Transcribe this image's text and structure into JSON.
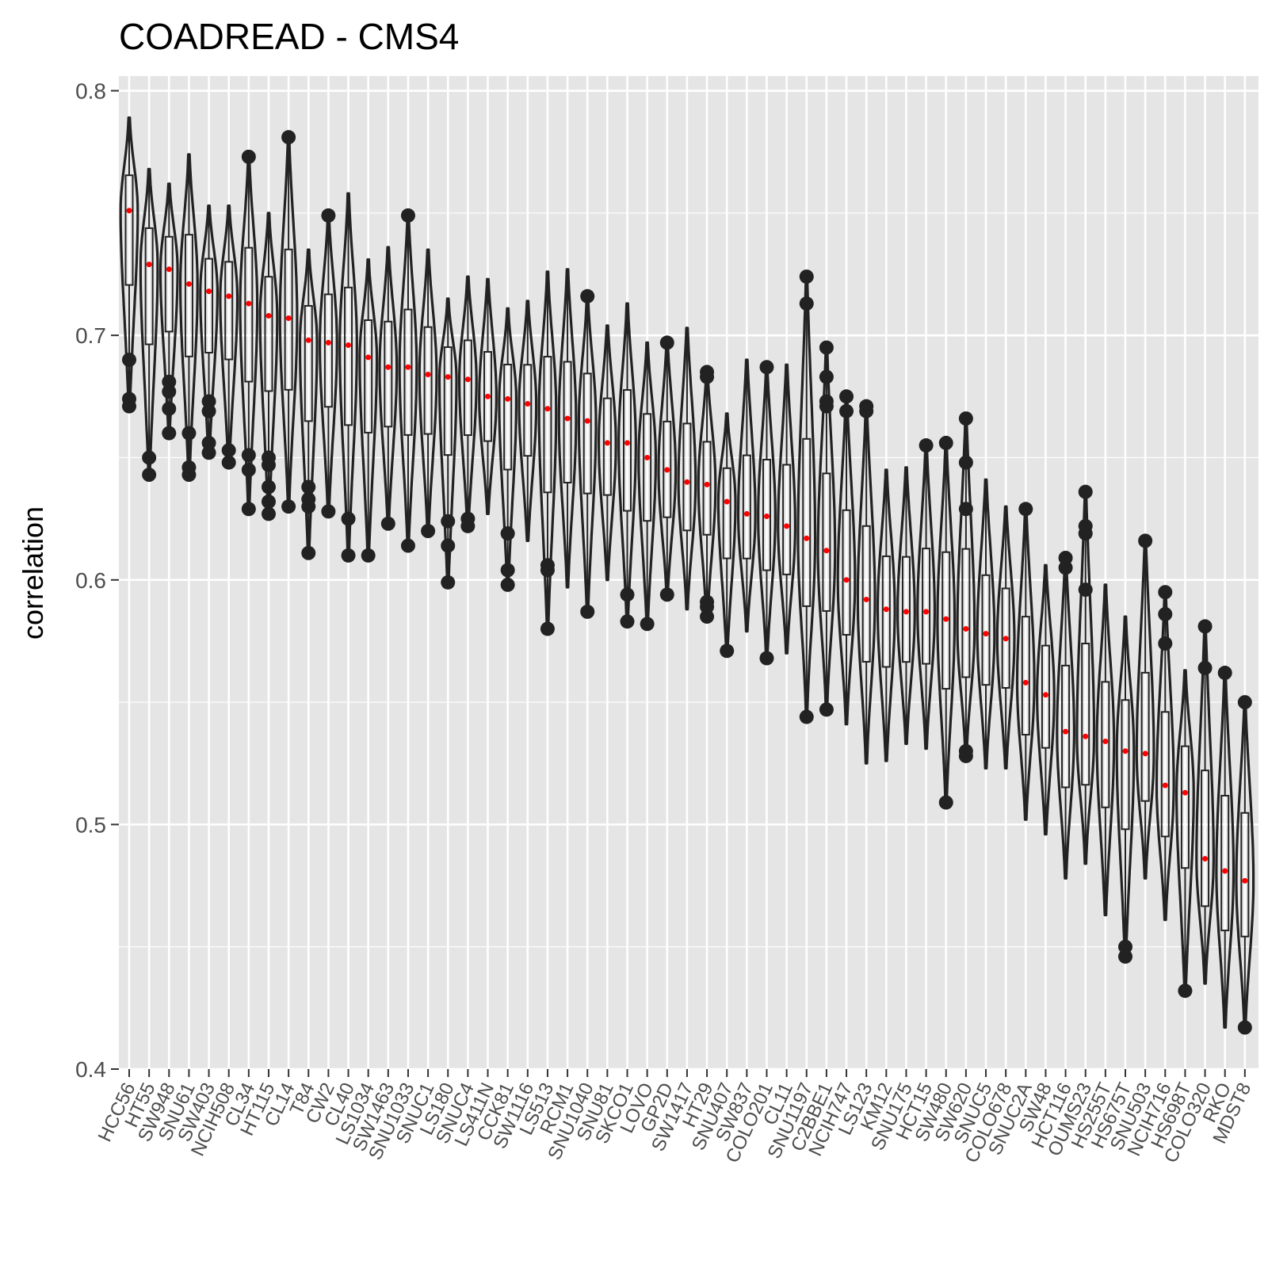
{
  "chart_data": {
    "type": "violin",
    "title": "COADREAD - CMS4",
    "ylabel": "correlation",
    "xlabel": "",
    "ylim": [
      0.4,
      0.806
    ],
    "yticks": [
      0.4,
      0.5,
      0.6,
      0.7,
      0.8
    ],
    "ytick_labels": [
      "0.4",
      "0.5",
      "0.6",
      "0.7",
      "0.8"
    ],
    "grid": true,
    "colors": {
      "panel": "#e5e5e5",
      "grid": "#ffffff",
      "violin": "#222222",
      "mean": "#ff0000"
    },
    "categories": [
      "HCC56",
      "HT55",
      "SW948",
      "SNU61",
      "SW403",
      "NCIH508",
      "CL34",
      "HT115",
      "CL14",
      "T84",
      "CW2",
      "CL40",
      "LS1034",
      "SW1463",
      "SNU1033",
      "SNUC1",
      "LS180",
      "SNUC4",
      "LS411N",
      "CCK81",
      "SW1116",
      "LS513",
      "RCM1",
      "SNU1040",
      "SNU81",
      "SKCO1",
      "LOVO",
      "GP2D",
      "SW1417",
      "HT29",
      "SNU407",
      "SW837",
      "COLO201",
      "CL11",
      "SNU1197",
      "C2BBE1",
      "NCIH747",
      "LS123",
      "KM12",
      "SNU175",
      "HCT15",
      "SW480",
      "SW620",
      "SNUC5",
      "COLO678",
      "SNUC2A",
      "SW48",
      "HCT116",
      "OUMS23",
      "HS255T",
      "HS675T",
      "SNU503",
      "NCIH716",
      "HS698T",
      "COLO320",
      "RKO",
      "MDST8"
    ],
    "series": [
      {
        "min": 0.671,
        "max": 0.789,
        "mean": 0.751,
        "outliers": [
          0.69,
          0.674,
          0.671
        ]
      },
      {
        "min": 0.643,
        "max": 0.768,
        "mean": 0.729,
        "outliers": [
          0.65,
          0.643
        ]
      },
      {
        "min": 0.66,
        "max": 0.762,
        "mean": 0.727,
        "outliers": [
          0.681,
          0.677,
          0.67,
          0.66
        ]
      },
      {
        "min": 0.643,
        "max": 0.774,
        "mean": 0.721,
        "outliers": [
          0.66,
          0.646,
          0.643
        ]
      },
      {
        "min": 0.652,
        "max": 0.753,
        "mean": 0.718,
        "outliers": [
          0.673,
          0.669,
          0.656,
          0.652
        ]
      },
      {
        "min": 0.648,
        "max": 0.753,
        "mean": 0.716,
        "outliers": [
          0.653,
          0.648
        ]
      },
      {
        "min": 0.629,
        "max": 0.773,
        "mean": 0.713,
        "outliers": [
          0.773,
          0.651,
          0.645,
          0.629
        ]
      },
      {
        "min": 0.627,
        "max": 0.75,
        "mean": 0.708,
        "outliers": [
          0.65,
          0.647,
          0.638,
          0.632,
          0.627
        ]
      },
      {
        "min": 0.63,
        "max": 0.781,
        "mean": 0.707,
        "outliers": [
          0.781,
          0.63
        ]
      },
      {
        "min": 0.611,
        "max": 0.735,
        "mean": 0.698,
        "outliers": [
          0.638,
          0.633,
          0.63,
          0.611
        ]
      },
      {
        "min": 0.628,
        "max": 0.749,
        "mean": 0.697,
        "outliers": [
          0.749,
          0.628
        ]
      },
      {
        "min": 0.61,
        "max": 0.758,
        "mean": 0.696,
        "outliers": [
          0.625,
          0.61
        ]
      },
      {
        "min": 0.61,
        "max": 0.731,
        "mean": 0.691,
        "outliers": [
          0.61
        ]
      },
      {
        "min": 0.623,
        "max": 0.736,
        "mean": 0.687,
        "outliers": [
          0.623
        ]
      },
      {
        "min": 0.614,
        "max": 0.749,
        "mean": 0.687,
        "outliers": [
          0.749,
          0.614
        ]
      },
      {
        "min": 0.62,
        "max": 0.735,
        "mean": 0.684,
        "outliers": [
          0.62
        ]
      },
      {
        "min": 0.599,
        "max": 0.715,
        "mean": 0.683,
        "outliers": [
          0.624,
          0.614,
          0.599
        ]
      },
      {
        "min": 0.622,
        "max": 0.724,
        "mean": 0.682,
        "outliers": [
          0.625,
          0.622
        ]
      },
      {
        "min": 0.627,
        "max": 0.723,
        "mean": 0.675,
        "outliers": []
      },
      {
        "min": 0.598,
        "max": 0.711,
        "mean": 0.674,
        "outliers": [
          0.619,
          0.604,
          0.598
        ]
      },
      {
        "min": 0.616,
        "max": 0.714,
        "mean": 0.672,
        "outliers": []
      },
      {
        "min": 0.58,
        "max": 0.726,
        "mean": 0.67,
        "outliers": [
          0.606,
          0.604,
          0.58
        ]
      },
      {
        "min": 0.597,
        "max": 0.727,
        "mean": 0.666,
        "outliers": []
      },
      {
        "min": 0.587,
        "max": 0.716,
        "mean": 0.665,
        "outliers": [
          0.716,
          0.587
        ]
      },
      {
        "min": 0.6,
        "max": 0.704,
        "mean": 0.656,
        "outliers": []
      },
      {
        "min": 0.583,
        "max": 0.713,
        "mean": 0.656,
        "outliers": [
          0.594,
          0.583
        ]
      },
      {
        "min": 0.582,
        "max": 0.697,
        "mean": 0.65,
        "outliers": [
          0.582
        ]
      },
      {
        "min": 0.594,
        "max": 0.697,
        "mean": 0.645,
        "outliers": [
          0.697,
          0.594
        ]
      },
      {
        "min": 0.588,
        "max": 0.703,
        "mean": 0.64,
        "outliers": []
      },
      {
        "min": 0.585,
        "max": 0.685,
        "mean": 0.639,
        "outliers": [
          0.685,
          0.683,
          0.591,
          0.589,
          0.585
        ]
      },
      {
        "min": 0.571,
        "max": 0.668,
        "mean": 0.632,
        "outliers": [
          0.571
        ]
      },
      {
        "min": 0.579,
        "max": 0.69,
        "mean": 0.627,
        "outliers": []
      },
      {
        "min": 0.568,
        "max": 0.687,
        "mean": 0.626,
        "outliers": [
          0.687,
          0.568
        ]
      },
      {
        "min": 0.57,
        "max": 0.688,
        "mean": 0.622,
        "outliers": []
      },
      {
        "min": 0.544,
        "max": 0.724,
        "mean": 0.617,
        "outliers": [
          0.724,
          0.713,
          0.544
        ]
      },
      {
        "min": 0.547,
        "max": 0.695,
        "mean": 0.612,
        "outliers": [
          0.695,
          0.683,
          0.673,
          0.671,
          0.547
        ]
      },
      {
        "min": 0.541,
        "max": 0.675,
        "mean": 0.6,
        "outliers": [
          0.675,
          0.669
        ]
      },
      {
        "min": 0.525,
        "max": 0.671,
        "mean": 0.592,
        "outliers": [
          0.671,
          0.669
        ]
      },
      {
        "min": 0.526,
        "max": 0.645,
        "mean": 0.588,
        "outliers": []
      },
      {
        "min": 0.533,
        "max": 0.646,
        "mean": 0.587,
        "outliers": []
      },
      {
        "min": 0.531,
        "max": 0.655,
        "mean": 0.587,
        "outliers": [
          0.655
        ]
      },
      {
        "min": 0.509,
        "max": 0.656,
        "mean": 0.584,
        "outliers": [
          0.656,
          0.509
        ]
      },
      {
        "min": 0.528,
        "max": 0.666,
        "mean": 0.58,
        "outliers": [
          0.666,
          0.648,
          0.629,
          0.53,
          0.528
        ]
      },
      {
        "min": 0.523,
        "max": 0.641,
        "mean": 0.578,
        "outliers": []
      },
      {
        "min": 0.523,
        "max": 0.63,
        "mean": 0.576,
        "outliers": []
      },
      {
        "min": 0.502,
        "max": 0.629,
        "mean": 0.558,
        "outliers": [
          0.629
        ]
      },
      {
        "min": 0.496,
        "max": 0.606,
        "mean": 0.553,
        "outliers": []
      },
      {
        "min": 0.478,
        "max": 0.609,
        "mean": 0.538,
        "outliers": [
          0.609,
          0.605
        ]
      },
      {
        "min": 0.484,
        "max": 0.636,
        "mean": 0.536,
        "outliers": [
          0.636,
          0.622,
          0.619,
          0.596
        ]
      },
      {
        "min": 0.463,
        "max": 0.598,
        "mean": 0.534,
        "outliers": []
      },
      {
        "min": 0.446,
        "max": 0.585,
        "mean": 0.53,
        "outliers": [
          0.45,
          0.446
        ]
      },
      {
        "min": 0.478,
        "max": 0.616,
        "mean": 0.529,
        "outliers": [
          0.616
        ]
      },
      {
        "min": 0.461,
        "max": 0.595,
        "mean": 0.516,
        "outliers": [
          0.595,
          0.586,
          0.574
        ]
      },
      {
        "min": 0.432,
        "max": 0.563,
        "mean": 0.513,
        "outliers": [
          0.432
        ]
      },
      {
        "min": 0.435,
        "max": 0.581,
        "mean": 0.486,
        "outliers": [
          0.581,
          0.564
        ]
      },
      {
        "min": 0.417,
        "max": 0.562,
        "mean": 0.481,
        "outliers": [
          0.562
        ]
      },
      {
        "min": 0.417,
        "max": 0.55,
        "mean": 0.477,
        "outliers": [
          0.55,
          0.417
        ]
      }
    ]
  }
}
